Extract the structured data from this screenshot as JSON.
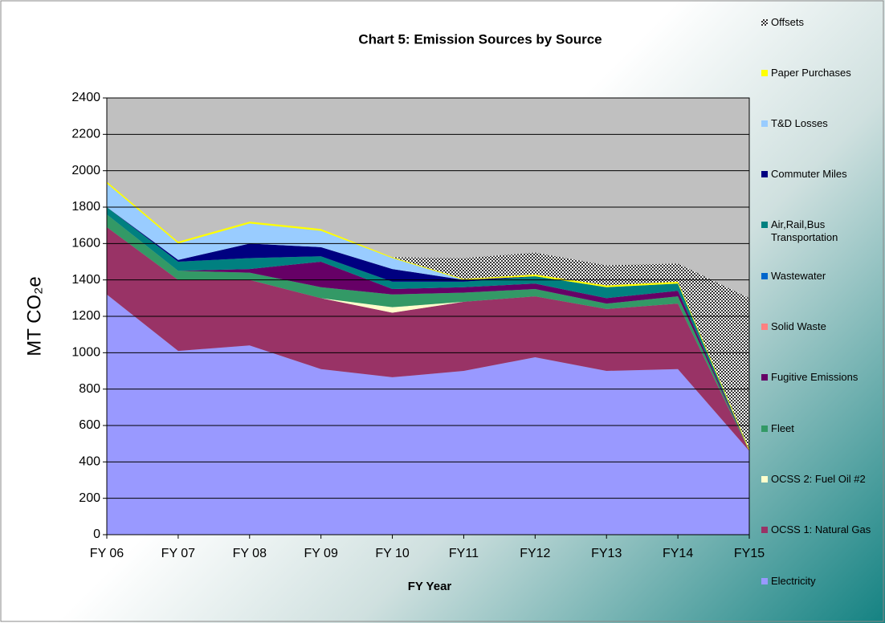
{
  "chart_data": {
    "type": "stacked_area",
    "title": "Chart 5: Emission Sources by Source",
    "x_label": "FY Year",
    "y_label": "MT CO₂e",
    "categories": [
      "FY 06",
      "FY 07",
      "FY 08",
      "FY 09",
      "FY 10",
      "FY11",
      "FY12",
      "FY13",
      "FY14",
      "FY15"
    ],
    "ylim": [
      0,
      2400
    ],
    "yticks": [
      0,
      200,
      400,
      600,
      800,
      1000,
      1200,
      1400,
      1600,
      1800,
      2000,
      2200,
      2400
    ],
    "grid": true,
    "legend": "right",
    "series": [
      {
        "name": "Electricity",
        "color": "#9999ff",
        "values": [
          1320,
          1010,
          1040,
          910,
          865,
          900,
          975,
          900,
          910,
          460
        ]
      },
      {
        "name": "OCSS 1: Natural Gas",
        "color": "#993366",
        "values": [
          370,
          390,
          360,
          390,
          355,
          380,
          335,
          340,
          360,
          0
        ]
      },
      {
        "name": "OCSS 2: Fuel Oil #2",
        "color": "#ffffcc",
        "values": [
          0,
          0,
          0,
          0,
          30,
          0,
          0,
          0,
          0,
          0
        ]
      },
      {
        "name": "Fleet",
        "color": "#339966",
        "values": [
          70,
          50,
          40,
          60,
          70,
          50,
          40,
          30,
          40,
          0
        ]
      },
      {
        "name": "Fugitive Emissions",
        "color": "#660066",
        "values": [
          0,
          0,
          20,
          140,
          30,
          30,
          30,
          30,
          30,
          0
        ]
      },
      {
        "name": "Solid Waste",
        "color": "#ff8080",
        "values": [
          0,
          0,
          0,
          0,
          0,
          0,
          0,
          0,
          0,
          0
        ]
      },
      {
        "name": "Wastewater",
        "color": "#0066cc",
        "values": [
          0,
          0,
          0,
          0,
          0,
          0,
          0,
          0,
          0,
          0
        ]
      },
      {
        "name": "Air,Rail,Bus Transportation",
        "color": "#008080",
        "values": [
          40,
          50,
          60,
          30,
          40,
          30,
          40,
          60,
          40,
          0
        ]
      },
      {
        "name": "Commuter Miles",
        "color": "#000080",
        "values": [
          0,
          10,
          80,
          50,
          70,
          10,
          0,
          0,
          0,
          0
        ]
      },
      {
        "name": "T&D Losses",
        "color": "#99ccff",
        "values": [
          130,
          90,
          110,
          90,
          60,
          0,
          0,
          0,
          0,
          0
        ]
      },
      {
        "name": "Paper Purchases",
        "color": "#ffff00",
        "values": [
          10,
          10,
          10,
          10,
          5,
          5,
          10,
          10,
          10,
          10
        ]
      },
      {
        "name": "Offsets",
        "color": "#333333",
        "pattern": "checker",
        "values": [
          0,
          0,
          0,
          0,
          0,
          115,
          120,
          110,
          100,
          830
        ]
      }
    ]
  }
}
